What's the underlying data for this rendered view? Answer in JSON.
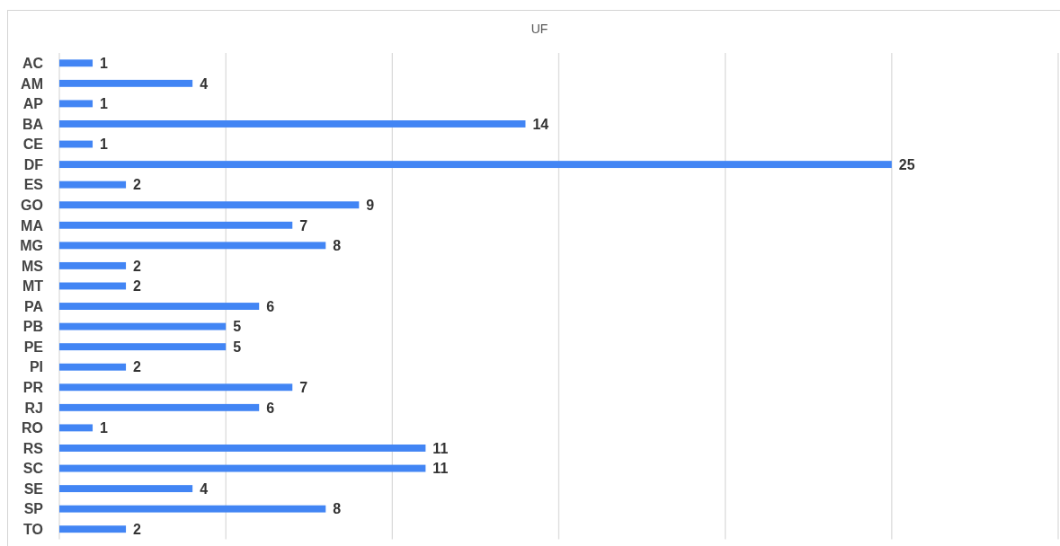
{
  "chart_data": {
    "type": "bar",
    "orientation": "horizontal",
    "title": "UF",
    "categories": [
      "AC",
      "AM",
      "AP",
      "BA",
      "CE",
      "DF",
      "ES",
      "GO",
      "MA",
      "MG",
      "MS",
      "MT",
      "PA",
      "PB",
      "PE",
      "PI",
      "PR",
      "RJ",
      "RO",
      "RS",
      "SC",
      "SE",
      "SP",
      "TO"
    ],
    "values": [
      1,
      4,
      1,
      14,
      1,
      25,
      2,
      9,
      7,
      8,
      2,
      2,
      6,
      5,
      5,
      2,
      7,
      6,
      1,
      11,
      11,
      4,
      8,
      2
    ],
    "color": "#4285f4",
    "xlim": [
      0,
      30
    ],
    "xticks": [
      {
        "value": 0,
        "label": null
      },
      {
        "value": 5,
        "label": null
      },
      {
        "value": 10,
        "label": null
      },
      {
        "value": 15,
        "label": null
      },
      {
        "value": 20,
        "label": null
      },
      {
        "value": 25,
        "label": null
      },
      {
        "value": 30,
        "label": null
      }
    ],
    "grid": "x",
    "data_labels": true,
    "tick_labels": "y"
  }
}
